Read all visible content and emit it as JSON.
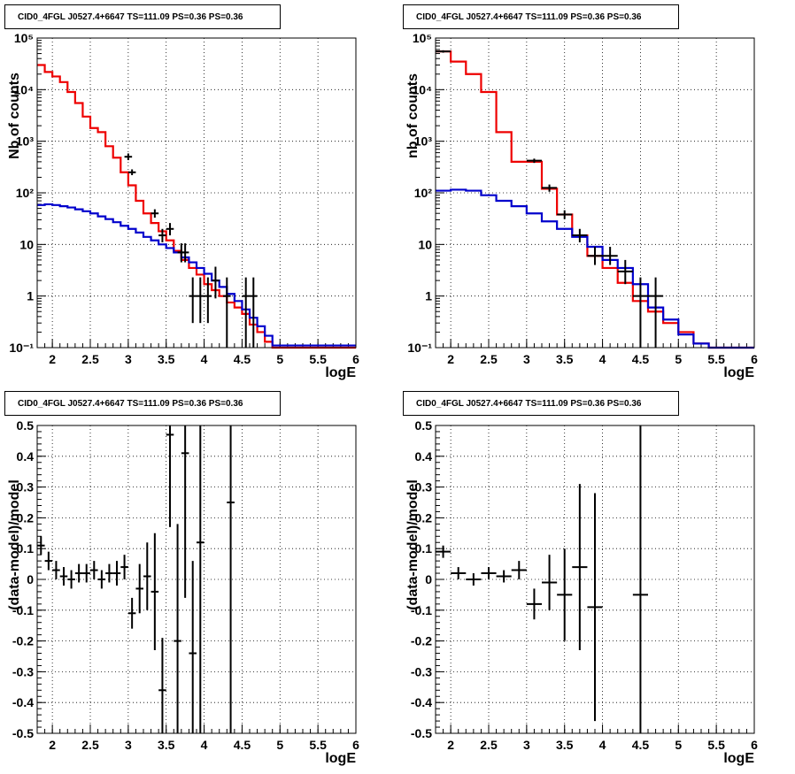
{
  "panels_title": "CID0_4FGL J0527.4+6647 TS=111.09 PS=0.36 PS=0.36",
  "colors": {
    "total_model": "#ee0000",
    "background_model": "#0000cc",
    "data": "#000000",
    "grid": "#000000"
  },
  "chart_data": [
    {
      "type": "line",
      "title": "CID0_4FGL J0527.4+6647 TS=111.09 PS=0.36 PS=0.36",
      "xlabel": "logE",
      "ylabel": "Nb of counts",
      "xlim": [
        1.8,
        6.0
      ],
      "ylim": [
        0.1,
        100000
      ],
      "yscale": "log",
      "grid": true,
      "x_ticks": [
        "2",
        "2.5",
        "3",
        "3.5",
        "4",
        "4.5",
        "5",
        "5.5",
        "6"
      ],
      "y_ticks": [
        "10⁻¹",
        "1",
        "10",
        "10²",
        "10³",
        "10⁴",
        "10⁵"
      ],
      "bin_width": 0.1,
      "series": [
        {
          "values": [
            [
              1.8,
              30000
            ],
            [
              1.9,
              22000
            ],
            [
              2.0,
              18000
            ],
            [
              2.1,
              14000
            ],
            [
              2.2,
              9000
            ],
            [
              2.3,
              5500
            ],
            [
              2.4,
              3000
            ],
            [
              2.5,
              1800
            ],
            [
              2.6,
              1500
            ],
            [
              2.7,
              800
            ],
            [
              2.8,
              480
            ],
            [
              2.9,
              250
            ],
            [
              3.0,
              140
            ],
            [
              3.1,
              70
            ],
            [
              3.2,
              40
            ],
            [
              3.3,
              26
            ],
            [
              3.4,
              18
            ],
            [
              3.5,
              12
            ],
            [
              3.6,
              7.5
            ],
            [
              3.7,
              5
            ],
            [
              3.8,
              3.5
            ],
            [
              3.9,
              2.6
            ],
            [
              4.0,
              1.7
            ],
            [
              4.1,
              1.3
            ],
            [
              4.2,
              1.0
            ],
            [
              4.3,
              0.75
            ],
            [
              4.4,
              0.6
            ],
            [
              4.5,
              0.45
            ],
            [
              4.6,
              0.28
            ],
            [
              4.7,
              0.2
            ],
            [
              4.8,
              0.13
            ],
            [
              4.9,
              0.1
            ]
          ]
        },
        {
          "values": [
            [
              1.8,
              58
            ],
            [
              1.9,
              60
            ],
            [
              2.0,
              58
            ],
            [
              2.1,
              55
            ],
            [
              2.2,
              52
            ],
            [
              2.3,
              48
            ],
            [
              2.4,
              44
            ],
            [
              2.5,
              40
            ],
            [
              2.6,
              35
            ],
            [
              2.7,
              31
            ],
            [
              2.8,
              27
            ],
            [
              2.9,
              23
            ],
            [
              3.0,
              20
            ],
            [
              3.1,
              17
            ],
            [
              3.2,
              14
            ],
            [
              3.3,
              12
            ],
            [
              3.4,
              10
            ],
            [
              3.5,
              8.5
            ],
            [
              3.6,
              7
            ],
            [
              3.7,
              5.6
            ],
            [
              3.8,
              4.5
            ],
            [
              3.9,
              3.5
            ],
            [
              4.0,
              2.7
            ],
            [
              4.1,
              2.0
            ],
            [
              4.2,
              1.5
            ],
            [
              4.3,
              1.1
            ],
            [
              4.4,
              0.8
            ],
            [
              4.5,
              0.55
            ],
            [
              4.6,
              0.38
            ],
            [
              4.7,
              0.26
            ],
            [
              4.8,
              0.17
            ],
            [
              4.9,
              0.11
            ]
          ]
        }
      ],
      "data_points": [
        {
          "x": 3.0,
          "y": 500,
          "ylo": 430,
          "yhi": 580
        },
        {
          "x": 3.05,
          "y": 250,
          "ylo": 220,
          "yhi": 285
        },
        {
          "x": 3.35,
          "y": 40,
          "ylo": 33,
          "yhi": 48
        },
        {
          "x": 3.45,
          "y": 15,
          "ylo": 11,
          "yhi": 20
        },
        {
          "x": 3.55,
          "y": 20,
          "ylo": 15,
          "yhi": 26
        },
        {
          "x": 3.7,
          "y": 7,
          "ylo": 4.5,
          "yhi": 10.5
        },
        {
          "x": 3.75,
          "y": 7,
          "ylo": 4.5,
          "yhi": 10.5
        },
        {
          "x": 3.85,
          "y": 1,
          "ylo": 0.3,
          "yhi": 2.3
        },
        {
          "x": 3.95,
          "y": 1,
          "ylo": 0.3,
          "yhi": 2.3
        },
        {
          "x": 4.05,
          "y": 1,
          "ylo": 0.3,
          "yhi": 2.3
        },
        {
          "x": 4.15,
          "y": 2,
          "ylo": 0.9,
          "yhi": 3.7
        },
        {
          "x": 4.3,
          "y": 1,
          "ylo": 0.1,
          "yhi": 2.3
        },
        {
          "x": 4.55,
          "y": 1,
          "ylo": 0.1,
          "yhi": 2.3
        },
        {
          "x": 4.65,
          "y": 1,
          "ylo": 0.1,
          "yhi": 2.3
        }
      ]
    },
    {
      "type": "line",
      "title": "CID0_4FGL J0527.4+6647 TS=111.09 PS=0.36 PS=0.36",
      "xlabel": "logE",
      "ylabel": "nb of counts",
      "xlim": [
        1.8,
        6.0
      ],
      "ylim": [
        0.1,
        100000
      ],
      "yscale": "log",
      "grid": true,
      "x_ticks": [
        "2",
        "2.5",
        "3",
        "3.5",
        "4",
        "4.5",
        "5",
        "5.5",
        "6"
      ],
      "y_ticks": [
        "10⁻¹",
        "1",
        "10",
        "10²",
        "10³",
        "10⁴",
        "10⁵"
      ],
      "bin_width": 0.2,
      "series": [
        {
          "values": [
            [
              1.8,
              55000
            ],
            [
              2.0,
              35000
            ],
            [
              2.2,
              20000
            ],
            [
              2.4,
              9000
            ],
            [
              2.6,
              1500
            ],
            [
              2.8,
              400
            ],
            [
              3.0,
              400
            ],
            [
              3.2,
              120
            ],
            [
              3.4,
              38
            ],
            [
              3.6,
              15
            ],
            [
              3.8,
              6
            ],
            [
              4.0,
              3.5
            ],
            [
              4.2,
              1.8
            ],
            [
              4.4,
              0.8
            ],
            [
              4.6,
              0.5
            ],
            [
              4.8,
              0.3
            ],
            [
              5.0,
              0.2
            ],
            [
              5.2,
              0.12
            ],
            [
              5.4,
              0.1
            ]
          ]
        },
        {
          "values": [
            [
              1.8,
              110
            ],
            [
              2.0,
              115
            ],
            [
              2.2,
              110
            ],
            [
              2.4,
              90
            ],
            [
              2.6,
              70
            ],
            [
              2.8,
              55
            ],
            [
              3.0,
              40
            ],
            [
              3.2,
              28
            ],
            [
              3.4,
              20
            ],
            [
              3.6,
              14
            ],
            [
              3.8,
              9
            ],
            [
              4.0,
              5
            ],
            [
              4.2,
              3.5
            ],
            [
              4.4,
              1.7
            ],
            [
              4.6,
              0.6
            ],
            [
              4.8,
              0.35
            ],
            [
              5.0,
              0.18
            ],
            [
              5.2,
              0.12
            ],
            [
              5.4,
              0.1
            ]
          ]
        }
      ],
      "data_points": [
        {
          "x": 1.9,
          "y": 55000,
          "ylo": 52000,
          "yhi": 58000
        },
        {
          "x": 3.1,
          "y": 420,
          "ylo": 380,
          "yhi": 460
        },
        {
          "x": 3.3,
          "y": 125,
          "ylo": 105,
          "yhi": 145
        },
        {
          "x": 3.5,
          "y": 38,
          "ylo": 31,
          "yhi": 46
        },
        {
          "x": 3.7,
          "y": 15,
          "ylo": 11,
          "yhi": 20
        },
        {
          "x": 3.9,
          "y": 6,
          "ylo": 4,
          "yhi": 9
        },
        {
          "x": 4.1,
          "y": 6,
          "ylo": 4,
          "yhi": 9
        },
        {
          "x": 4.3,
          "y": 3,
          "ylo": 1.7,
          "yhi": 5
        },
        {
          "x": 4.5,
          "y": 1,
          "ylo": 0.1,
          "yhi": 2.3
        },
        {
          "x": 4.7,
          "y": 1,
          "ylo": 0.1,
          "yhi": 2.3
        }
      ]
    },
    {
      "type": "scatter",
      "title": "CID0_4FGL J0527.4+6647 TS=111.09 PS=0.36 PS=0.36",
      "xlabel": "logE",
      "ylabel": "(data-model)/model",
      "xlim": [
        1.8,
        6.0
      ],
      "ylim": [
        -0.5,
        0.5
      ],
      "grid": true,
      "x_ticks": [
        "2",
        "2.5",
        "3",
        "3.5",
        "4",
        "4.5",
        "5",
        "5.5",
        "6"
      ],
      "y_ticks": [
        "-0.5",
        "-0.4",
        "-0.3",
        "-0.2",
        "-0.1",
        "0",
        "0.1",
        "0.2",
        "0.3",
        "0.4",
        "0.5"
      ],
      "points": [
        {
          "x": 1.85,
          "y": 0.11,
          "err": 0.03,
          "xw": 0.05
        },
        {
          "x": 1.95,
          "y": 0.06,
          "err": 0.03,
          "xw": 0.05
        },
        {
          "x": 2.05,
          "y": 0.03,
          "err": 0.03,
          "xw": 0.05
        },
        {
          "x": 2.15,
          "y": 0.01,
          "err": 0.03,
          "xw": 0.05
        },
        {
          "x": 2.25,
          "y": 0.0,
          "err": 0.03,
          "xw": 0.05
        },
        {
          "x": 2.35,
          "y": 0.02,
          "err": 0.03,
          "xw": 0.05
        },
        {
          "x": 2.45,
          "y": 0.02,
          "err": 0.03,
          "xw": 0.05
        },
        {
          "x": 2.55,
          "y": 0.03,
          "err": 0.03,
          "xw": 0.05
        },
        {
          "x": 2.65,
          "y": 0.0,
          "err": 0.03,
          "xw": 0.05
        },
        {
          "x": 2.75,
          "y": 0.02,
          "err": 0.03,
          "xw": 0.05
        },
        {
          "x": 2.85,
          "y": 0.02,
          "err": 0.04,
          "xw": 0.05
        },
        {
          "x": 2.95,
          "y": 0.04,
          "err": 0.04,
          "xw": 0.05
        },
        {
          "x": 3.05,
          "y": -0.11,
          "err": 0.05,
          "xw": 0.05
        },
        {
          "x": 3.15,
          "y": -0.03,
          "err": 0.08,
          "xw": 0.05
        },
        {
          "x": 3.25,
          "y": 0.01,
          "err": 0.11,
          "xw": 0.05
        },
        {
          "x": 3.35,
          "y": -0.04,
          "err": 0.19,
          "xw": 0.05
        },
        {
          "x": 3.45,
          "y": -0.36,
          "err": 0.17,
          "xw": 0.05
        },
        {
          "x": 3.55,
          "y": 0.47,
          "err": 0.3,
          "xw": 0.05
        },
        {
          "x": 3.65,
          "y": -0.2,
          "err": 0.38,
          "xw": 0.05
        },
        {
          "x": 3.75,
          "y": 0.41,
          "err": 0.47,
          "xw": 0.05
        },
        {
          "x": 3.85,
          "y": -0.24,
          "err": 0.3,
          "xw": 0.05
        },
        {
          "x": 3.95,
          "y": 0.12,
          "err": 0.65,
          "xw": 0.05
        },
        {
          "x": 4.35,
          "y": 0.25,
          "err": 0.8,
          "xw": 0.05
        }
      ]
    },
    {
      "type": "scatter",
      "title": "CID0_4FGL J0527.4+6647 TS=111.09 PS=0.36 PS=0.36",
      "xlabel": "logE",
      "ylabel": "(data-model)/model",
      "xlim": [
        1.8,
        6.0
      ],
      "ylim": [
        -0.5,
        0.5
      ],
      "grid": true,
      "x_ticks": [
        "2",
        "2.5",
        "3",
        "3.5",
        "4",
        "4.5",
        "5",
        "5.5",
        "6"
      ],
      "y_ticks": [
        "-0.5",
        "-0.4",
        "-0.3",
        "-0.2",
        "-0.1",
        "0",
        "0.1",
        "0.2",
        "0.3",
        "0.4",
        "0.5"
      ],
      "points": [
        {
          "x": 1.9,
          "y": 0.09,
          "err": 0.02,
          "xw": 0.1
        },
        {
          "x": 2.1,
          "y": 0.02,
          "err": 0.02,
          "xw": 0.1
        },
        {
          "x": 2.3,
          "y": 0.0,
          "err": 0.02,
          "xw": 0.1
        },
        {
          "x": 2.5,
          "y": 0.02,
          "err": 0.02,
          "xw": 0.1
        },
        {
          "x": 2.7,
          "y": 0.01,
          "err": 0.02,
          "xw": 0.1
        },
        {
          "x": 2.9,
          "y": 0.03,
          "err": 0.03,
          "xw": 0.1
        },
        {
          "x": 3.1,
          "y": -0.08,
          "err": 0.05,
          "xw": 0.1
        },
        {
          "x": 3.3,
          "y": -0.01,
          "err": 0.09,
          "xw": 0.1
        },
        {
          "x": 3.5,
          "y": -0.05,
          "err": 0.15,
          "xw": 0.1
        },
        {
          "x": 3.7,
          "y": 0.04,
          "err": 0.27,
          "xw": 0.1
        },
        {
          "x": 3.9,
          "y": -0.09,
          "err": 0.37,
          "xw": 0.1
        },
        {
          "x": 4.5,
          "y": -0.05,
          "err": 0.8,
          "xw": 0.1
        }
      ]
    }
  ]
}
